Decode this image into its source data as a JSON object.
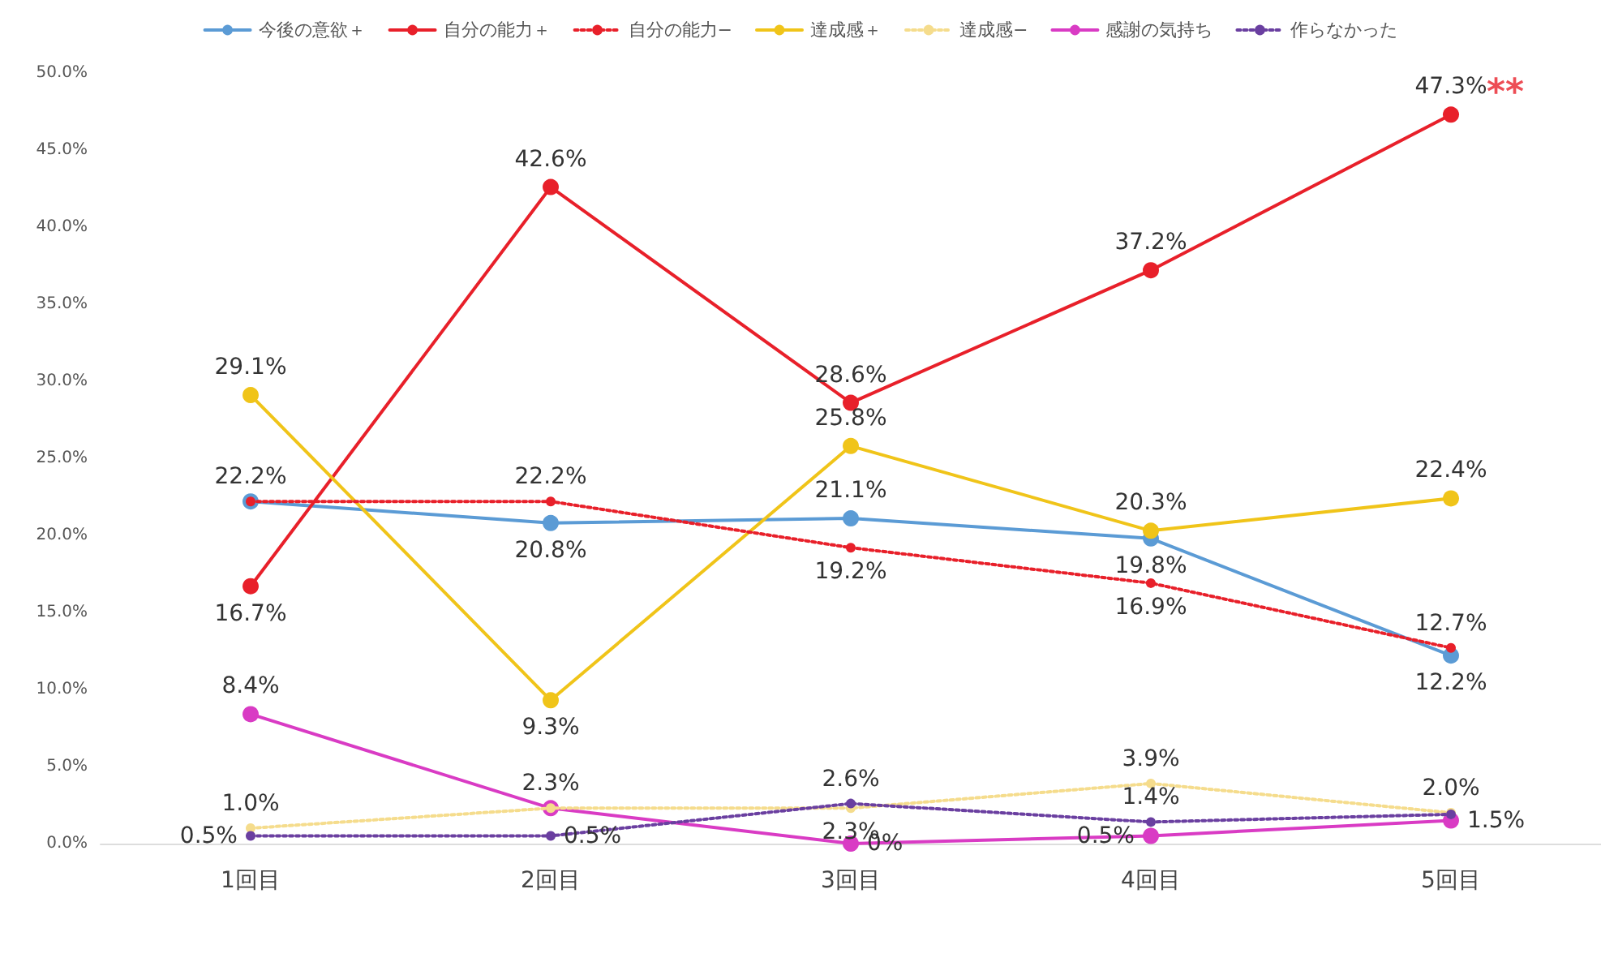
{
  "chart_data": {
    "type": "line",
    "categories": [
      "1回目",
      "2回目",
      "3回目",
      "4回目",
      "5回目"
    ],
    "series": [
      {
        "name": "今後の意欲＋",
        "color": "#5b9bd5",
        "line_style": "solid",
        "values": [
          22.2,
          20.8,
          21.1,
          19.8,
          12.2
        ],
        "value_labels": [
          null,
          "20.8%",
          "21.1%",
          "19.8%",
          "12.2%"
        ]
      },
      {
        "name": "自分の能力＋",
        "color": "#e8202a",
        "line_style": "solid",
        "values": [
          16.7,
          42.6,
          28.6,
          37.2,
          47.3
        ],
        "value_labels": [
          "16.7%",
          "42.6%",
          "28.6%",
          "37.2%",
          "47.3%"
        ]
      },
      {
        "name": "自分の能力−",
        "color": "#e8202a",
        "line_style": "dotted",
        "values": [
          22.2,
          22.2,
          19.2,
          16.9,
          12.7
        ],
        "value_labels": [
          "22.2%",
          "22.2%",
          "19.2%",
          "16.9%",
          "12.7%"
        ]
      },
      {
        "name": "達成感＋",
        "color": "#f0c419",
        "line_style": "solid",
        "values": [
          29.1,
          9.3,
          25.8,
          20.3,
          22.4
        ],
        "value_labels": [
          "29.1%",
          "9.3%",
          "25.8%",
          "20.3%",
          "22.4%"
        ]
      },
      {
        "name": "達成感−",
        "color": "#f5dc8c",
        "line_style": "dotted",
        "values": [
          1.0,
          2.3,
          2.3,
          3.9,
          2.0
        ],
        "value_labels": [
          "1.0%",
          "2.3%",
          "2.3%",
          "3.9%",
          "2.0%"
        ]
      },
      {
        "name": "感謝の気持ち",
        "color": "#d93bc4",
        "line_style": "solid",
        "values": [
          8.4,
          2.3,
          0,
          0.5,
          1.5
        ],
        "value_labels": [
          "8.4%",
          null,
          "0%",
          "0.5%",
          "1.5%"
        ]
      },
      {
        "name": "作らなかった",
        "color": "#6a3fa0",
        "line_style": "dotted",
        "values": [
          0.5,
          0.5,
          2.6,
          1.4,
          1.9
        ],
        "value_labels": [
          "0.5%",
          "0.5%",
          "2.6%",
          "1.4%",
          null
        ]
      }
    ],
    "ylim": [
      0,
      50
    ],
    "yticks": [
      {
        "value": 0,
        "label": "0.0%"
      },
      {
        "value": 5,
        "label": "5.0%"
      },
      {
        "value": 10,
        "label": "10.0%"
      },
      {
        "value": 15,
        "label": "15.0%"
      },
      {
        "value": 20,
        "label": "20.0%"
      },
      {
        "value": 25,
        "label": "25.0%"
      },
      {
        "value": 30,
        "label": "30.0%"
      },
      {
        "value": 35,
        "label": "35.0%"
      },
      {
        "value": 40,
        "label": "40.0%"
      },
      {
        "value": 45,
        "label": "45.0%"
      },
      {
        "value": 50,
        "label": "50.0%"
      }
    ],
    "annotations": [
      {
        "text": "**",
        "x": "5回目",
        "y": 47.3
      }
    ],
    "legend": "top",
    "marker": "circle",
    "grid": false
  }
}
